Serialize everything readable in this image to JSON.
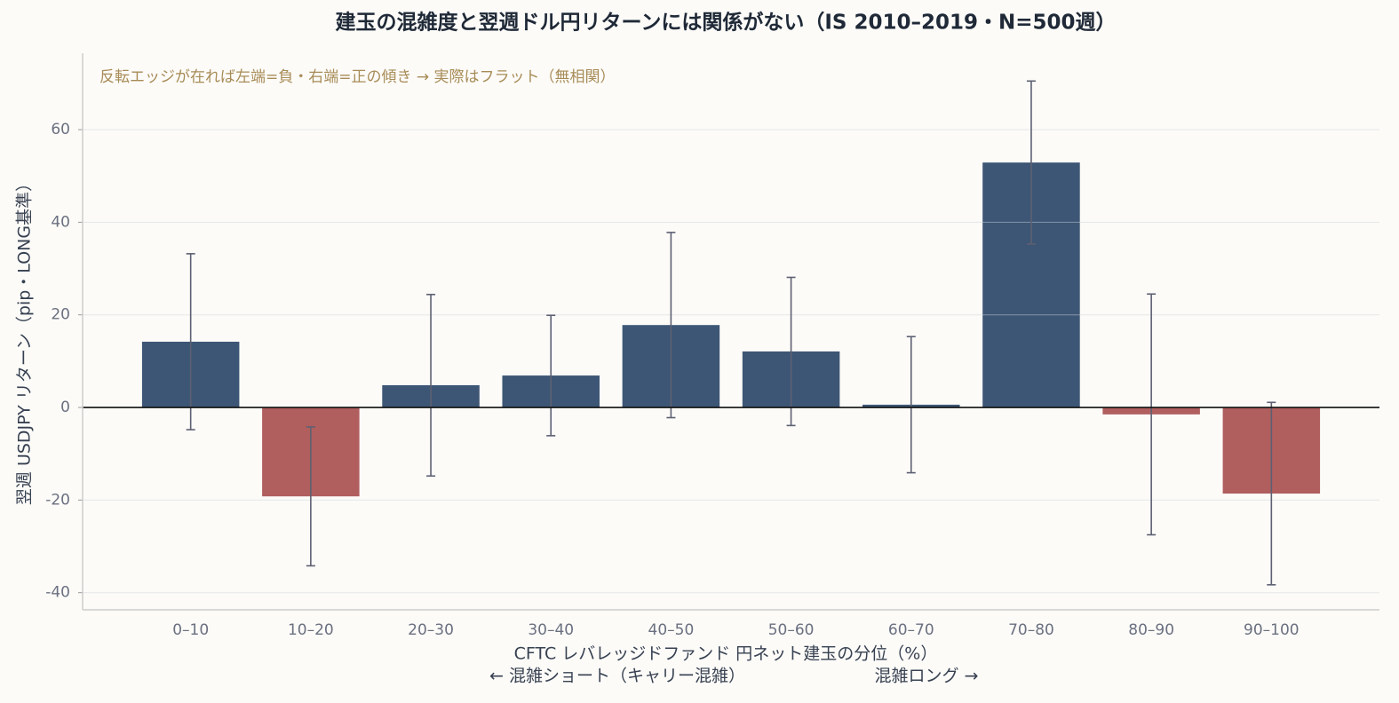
{
  "chart_data": {
    "type": "bar",
    "title": "建玉の混雑度と翌週ドル円リターンには関係がない（IS 2010–2019・N=500週）",
    "annotation": "反転エッジが在れば左端=負・右端=正の傾き → 実際はフラット（無相関）",
    "xlabel": "CFTC レバレッジドファンド 円ネット建玉の分位（%）",
    "direction_labels": [
      "← 混雑ショート（キャリー混雑）",
      "混雑ロング →"
    ],
    "ylabel": "翌週 USDJPY リターン（pip・LONG基準）",
    "categories": [
      "0–10",
      "10–20",
      "20–30",
      "30–40",
      "40–50",
      "50–60",
      "60–70",
      "70–80",
      "80–90",
      "90–100"
    ],
    "values": [
      14.2,
      -19.2,
      4.8,
      6.9,
      17.8,
      12.1,
      0.6,
      52.9,
      -1.5,
      -18.6
    ],
    "errors": [
      19,
      15,
      19.6,
      13,
      20,
      16,
      14.7,
      17.6,
      26,
      19.7
    ],
    "colors": [
      "#3d5675",
      "#b05e5e",
      "#3d5675",
      "#3d5675",
      "#3d5675",
      "#3d5675",
      "#3d5675",
      "#3d5675",
      "#b05e5e",
      "#b05e5e"
    ],
    "error_color": "#5d6072",
    "ylim": [
      -43.7,
      76.5
    ],
    "yticks": [
      -40,
      -20,
      0,
      20,
      40,
      60
    ],
    "grid": true
  }
}
